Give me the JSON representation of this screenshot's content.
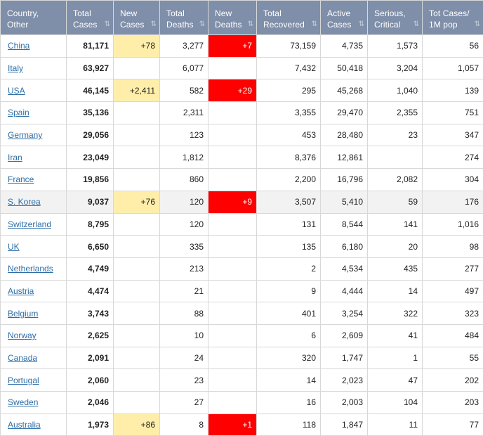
{
  "columns": [
    {
      "label": "Country,\nOther",
      "name": "col-country",
      "sort": ""
    },
    {
      "label": "Total\nCases",
      "name": "col-total-cases",
      "sort": "↓F"
    },
    {
      "label": "New\nCases",
      "name": "col-new-cases",
      "sort": "↓↑"
    },
    {
      "label": "Total\nDeaths",
      "name": "col-total-deaths",
      "sort": "↓↑"
    },
    {
      "label": "New\nDeaths",
      "name": "col-new-deaths",
      "sort": "↓↑"
    },
    {
      "label": "Total\nRecovered",
      "name": "col-total-recovered",
      "sort": "↓↑"
    },
    {
      "label": "Active\nCases",
      "name": "col-active-cases",
      "sort": "↓↑"
    },
    {
      "label": "Serious,\nCritical",
      "name": "col-serious-critical",
      "sort": "↓↑"
    },
    {
      "label": "Tot Cases/\n1M pop",
      "name": "col-tot-cases-1m",
      "sort": "↓↑"
    }
  ],
  "rows": [
    {
      "country": "China",
      "total_cases": "81,171",
      "new_cases": "+78",
      "total_deaths": "3,277",
      "new_deaths": "+7",
      "total_recovered": "73,159",
      "active_cases": "4,735",
      "serious": "1,573",
      "per_million": "56"
    },
    {
      "country": "Italy",
      "total_cases": "63,927",
      "new_cases": "",
      "total_deaths": "6,077",
      "new_deaths": "",
      "total_recovered": "7,432",
      "active_cases": "50,418",
      "serious": "3,204",
      "per_million": "1,057"
    },
    {
      "country": "USA",
      "total_cases": "46,145",
      "new_cases": "+2,411",
      "total_deaths": "582",
      "new_deaths": "+29",
      "total_recovered": "295",
      "active_cases": "45,268",
      "serious": "1,040",
      "per_million": "139"
    },
    {
      "country": "Spain",
      "total_cases": "35,136",
      "new_cases": "",
      "total_deaths": "2,311",
      "new_deaths": "",
      "total_recovered": "3,355",
      "active_cases": "29,470",
      "serious": "2,355",
      "per_million": "751"
    },
    {
      "country": "Germany",
      "total_cases": "29,056",
      "new_cases": "",
      "total_deaths": "123",
      "new_deaths": "",
      "total_recovered": "453",
      "active_cases": "28,480",
      "serious": "23",
      "per_million": "347"
    },
    {
      "country": "Iran",
      "total_cases": "23,049",
      "new_cases": "",
      "total_deaths": "1,812",
      "new_deaths": "",
      "total_recovered": "8,376",
      "active_cases": "12,861",
      "serious": "",
      "per_million": "274"
    },
    {
      "country": "France",
      "total_cases": "19,856",
      "new_cases": "",
      "total_deaths": "860",
      "new_deaths": "",
      "total_recovered": "2,200",
      "active_cases": "16,796",
      "serious": "2,082",
      "per_million": "304"
    },
    {
      "country": "S. Korea",
      "total_cases": "9,037",
      "new_cases": "+76",
      "total_deaths": "120",
      "new_deaths": "+9",
      "total_recovered": "3,507",
      "active_cases": "5,410",
      "serious": "59",
      "per_million": "176",
      "grey": true
    },
    {
      "country": "Switzerland",
      "total_cases": "8,795",
      "new_cases": "",
      "total_deaths": "120",
      "new_deaths": "",
      "total_recovered": "131",
      "active_cases": "8,544",
      "serious": "141",
      "per_million": "1,016"
    },
    {
      "country": "UK",
      "total_cases": "6,650",
      "new_cases": "",
      "total_deaths": "335",
      "new_deaths": "",
      "total_recovered": "135",
      "active_cases": "6,180",
      "serious": "20",
      "per_million": "98"
    },
    {
      "country": "Netherlands",
      "total_cases": "4,749",
      "new_cases": "",
      "total_deaths": "213",
      "new_deaths": "",
      "total_recovered": "2",
      "active_cases": "4,534",
      "serious": "435",
      "per_million": "277"
    },
    {
      "country": "Austria",
      "total_cases": "4,474",
      "new_cases": "",
      "total_deaths": "21",
      "new_deaths": "",
      "total_recovered": "9",
      "active_cases": "4,444",
      "serious": "14",
      "per_million": "497"
    },
    {
      "country": "Belgium",
      "total_cases": "3,743",
      "new_cases": "",
      "total_deaths": "88",
      "new_deaths": "",
      "total_recovered": "401",
      "active_cases": "3,254",
      "serious": "322",
      "per_million": "323"
    },
    {
      "country": "Norway",
      "total_cases": "2,625",
      "new_cases": "",
      "total_deaths": "10",
      "new_deaths": "",
      "total_recovered": "6",
      "active_cases": "2,609",
      "serious": "41",
      "per_million": "484"
    },
    {
      "country": "Canada",
      "total_cases": "2,091",
      "new_cases": "",
      "total_deaths": "24",
      "new_deaths": "",
      "total_recovered": "320",
      "active_cases": "1,747",
      "serious": "1",
      "per_million": "55"
    },
    {
      "country": "Portugal",
      "total_cases": "2,060",
      "new_cases": "",
      "total_deaths": "23",
      "new_deaths": "",
      "total_recovered": "14",
      "active_cases": "2,023",
      "serious": "47",
      "per_million": "202"
    },
    {
      "country": "Sweden",
      "total_cases": "2,046",
      "new_cases": "",
      "total_deaths": "27",
      "new_deaths": "",
      "total_recovered": "16",
      "active_cases": "2,003",
      "serious": "104",
      "per_million": "203"
    },
    {
      "country": "Australia",
      "total_cases": "1,973",
      "new_cases": "+86",
      "total_deaths": "8",
      "new_deaths": "+1",
      "total_recovered": "118",
      "active_cases": "1,847",
      "serious": "11",
      "per_million": "77"
    }
  ],
  "colors": {
    "header_bg": "#7f8fa9",
    "new_cases_highlight": "#ffeeaa",
    "new_deaths_highlight": "#ff0000",
    "link": "#2e6ea6"
  }
}
